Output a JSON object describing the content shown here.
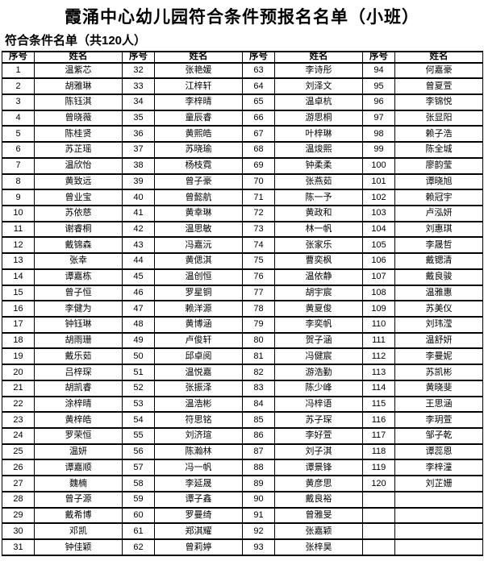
{
  "page": {
    "title": "霞涌中心幼儿园符合条件预报名名单（小班）",
    "section_heading": "符合条件名单（共120人）",
    "total_count": "120"
  },
  "table": {
    "header": [
      "序号",
      "姓名",
      "序号",
      "姓名",
      "序号",
      "姓名",
      "序号",
      "姓名"
    ],
    "columns": 4,
    "rows_per_column": 31,
    "names": [
      "温紫芯",
      "胡雅琳",
      "陈钰淇",
      "曾晓薇",
      "陈桂贤",
      "苏芷瑶",
      "温欣怡",
      "黄致远",
      "曾业宝",
      "苏依慈",
      "谢睿桐",
      "戴锦森",
      "张幸",
      "谭嘉栋",
      "曾子恒",
      "李健为",
      "钟钰琳",
      "胡雨珊",
      "戴乐茹",
      "吕梓琛",
      "胡凯睿",
      "涂梓晴",
      "黄梓皓",
      "罗荣恒",
      "温妍",
      "谭嘉顺",
      "魏楠",
      "曾子源",
      "戴希博",
      "邓凯",
      "钟佳颖",
      "张艳媛",
      "江梓轩",
      "李梓晴",
      "童辰睿",
      "黄熙皓",
      "苏晓瑜",
      "杨枝霓",
      "曾子豪",
      "曾懿航",
      "黄幸琳",
      "温思敏",
      "冯嘉沅",
      "黄偲淇",
      "温创恒",
      "罗星铜",
      "赖洋源",
      "黄博涵",
      "卢俊轩",
      "邱卓阅",
      "温悦嘉",
      "张振泽",
      "温浩彬",
      "符思铭",
      "刘济瑄",
      "陈瀚林",
      "冯一帆",
      "李延晟",
      "谭子鑫",
      "罗曼绮",
      "郑淇耀",
      "曾莉婷",
      "李诗彤",
      "刘泽文",
      "温卓杭",
      "游思桐",
      "叶梓琳",
      "温焌熙",
      "钟柔柔",
      "张燕茹",
      "陈一予",
      "黄政和",
      "林一帆",
      "张家乐",
      "曹奕枫",
      "温依静",
      "胡宇宸",
      "黄夏俊",
      "李奕帆",
      "贺子涵",
      "冯健宸",
      "游浩勤",
      "陈少峰",
      "冯梓语",
      "苏子琛",
      "李好萱",
      "刘子淇",
      "谭景锋",
      "黄彦思",
      "戴良裕",
      "曾雅旻",
      "张嘉颖",
      "张梓昊",
      "何嘉豪",
      "曾夏萱",
      "李锦悦",
      "张显阳",
      "赖子浩",
      "陈全城",
      "廖韵莹",
      "谭晓旭",
      "赖冠宇",
      "卢泓妍",
      "刘惠琪",
      "李晟哲",
      "戴锶清",
      "戴良骏",
      "温雅惠",
      "苏美仪",
      "刘玮滢",
      "温舒妍",
      "李曼妮",
      "苏凯彬",
      "黄晓斐",
      "王思涵",
      "李玥萱",
      "邹子乾",
      "谭蕊恩",
      "李梓潼",
      "刘芷姗"
    ]
  }
}
